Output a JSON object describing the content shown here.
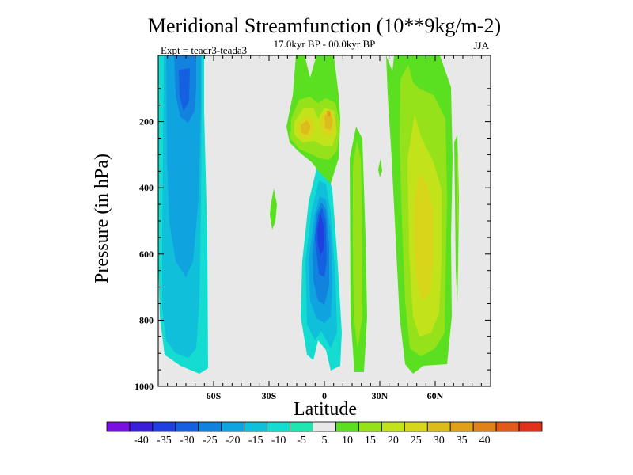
{
  "chart_data": {
    "type": "contour",
    "title": "Meridional Streamfunction (10**9kg/m-2)",
    "subtitle": "17.0kyr BP - 00.0kyr BP",
    "left_label": "Expt = teadr3-teada3",
    "right_label": "JJA",
    "xlabel": "Latitude",
    "ylabel": "Pressure (in hPa)",
    "xlim": [
      -90,
      90
    ],
    "ylim": [
      1000,
      0
    ],
    "x_ticks": [
      {
        "value": -60,
        "label": "60S"
      },
      {
        "value": -30,
        "label": "30S"
      },
      {
        "value": 0,
        "label": "0"
      },
      {
        "value": 30,
        "label": "30N"
      },
      {
        "value": 60,
        "label": "60N"
      }
    ],
    "y_ticks": [
      {
        "value": 200,
        "label": "200"
      },
      {
        "value": 400,
        "label": "400"
      },
      {
        "value": 600,
        "label": "600"
      },
      {
        "value": 800,
        "label": "800"
      },
      {
        "value": 1000,
        "label": "1000"
      }
    ],
    "levels": [
      -40,
      -35,
      -30,
      -25,
      -20,
      -15,
      -10,
      -5,
      5,
      10,
      15,
      20,
      25,
      30,
      35,
      40
    ],
    "colorbar_labels": [
      "-40",
      "-35",
      "-30",
      "-25",
      "-20",
      "-15",
      "-10",
      "-5",
      "5",
      "10",
      "15",
      "20",
      "25",
      "30",
      "35",
      "40"
    ],
    "colorbar_colors": [
      "#7a10e0",
      "#3a1ed8",
      "#1f3fe0",
      "#1560e0",
      "#1183df",
      "#0fa3df",
      "#10c0da",
      "#14dcd0",
      "#1ee6b0",
      "#e8e8e8",
      "#5ae020",
      "#96e21a",
      "#c2e21a",
      "#d8d61a",
      "#dcbc1a",
      "#e0a01a",
      "#e0821a",
      "#e05a1a",
      "#e0321a"
    ],
    "features": [
      {
        "name": "southern-high-latitude-negative-cell",
        "lat_range": [
          -90,
          -60
        ],
        "p_range": [
          0,
          970
        ],
        "value": -20
      },
      {
        "name": "equatorial-negative-cell",
        "lat_range": [
          -8,
          10
        ],
        "p_range": [
          290,
          1000
        ],
        "value": -30
      },
      {
        "name": "upper-tropical-positive-cell-south",
        "lat_range": [
          -18,
          -2
        ],
        "p_range": [
          150,
          300
        ],
        "value": 20
      },
      {
        "name": "upper-tropical-positive-cell-north",
        "lat_range": [
          -4,
          8
        ],
        "p_range": [
          130,
          250
        ],
        "value": 20
      },
      {
        "name": "subtropical-positive-band",
        "lat_range": [
          14,
          22
        ],
        "p_range": [
          160,
          1000
        ],
        "value": 10
      },
      {
        "name": "midlatitude-positive-cell",
        "lat_range": [
          42,
          66
        ],
        "p_range": [
          0,
          970
        ],
        "value": 15
      }
    ]
  }
}
